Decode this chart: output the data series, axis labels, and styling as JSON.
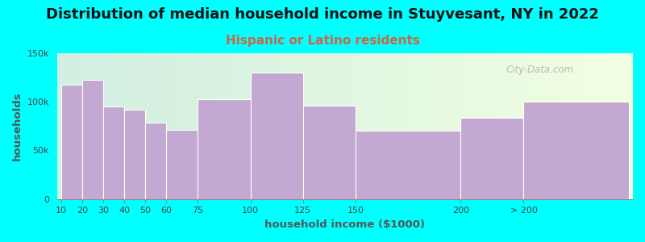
{
  "title": "Distribution of median household income in Stuyvesant, NY in 2022",
  "subtitle": "Hispanic or Latino residents",
  "xlabel": "household income ($1000)",
  "ylabel": "households",
  "background_color": "#00FFFF",
  "bar_color": "#C3A8D1",
  "bar_edge_color": "#ffffff",
  "title_fontsize": 13,
  "subtitle_fontsize": 11,
  "subtitle_color": "#cc6644",
  "axis_label_fontsize": 9.5,
  "tick_fontsize": 8,
  "watermark_text": "City-Data.com",
  "watermark_color": "#b0b0b0",
  "ylim": [
    0,
    150000
  ],
  "yticks": [
    0,
    50000,
    100000,
    150000
  ],
  "ytick_labels": [
    "0",
    "50k",
    "100k",
    "150k"
  ],
  "edges": [
    10,
    20,
    30,
    40,
    50,
    60,
    75,
    100,
    125,
    150,
    200,
    230,
    280
  ],
  "tick_positions": [
    10,
    20,
    30,
    40,
    50,
    60,
    75,
    100,
    125,
    150,
    200,
    230
  ],
  "tick_labels": [
    "10",
    "20",
    "30",
    "40",
    "50",
    "60",
    "75",
    "100",
    "125",
    "150",
    "200",
    "> 200"
  ],
  "values": [
    117000,
    122000,
    95000,
    92000,
    78000,
    71000,
    102000,
    130000,
    96000,
    70000,
    83000,
    100000
  ]
}
